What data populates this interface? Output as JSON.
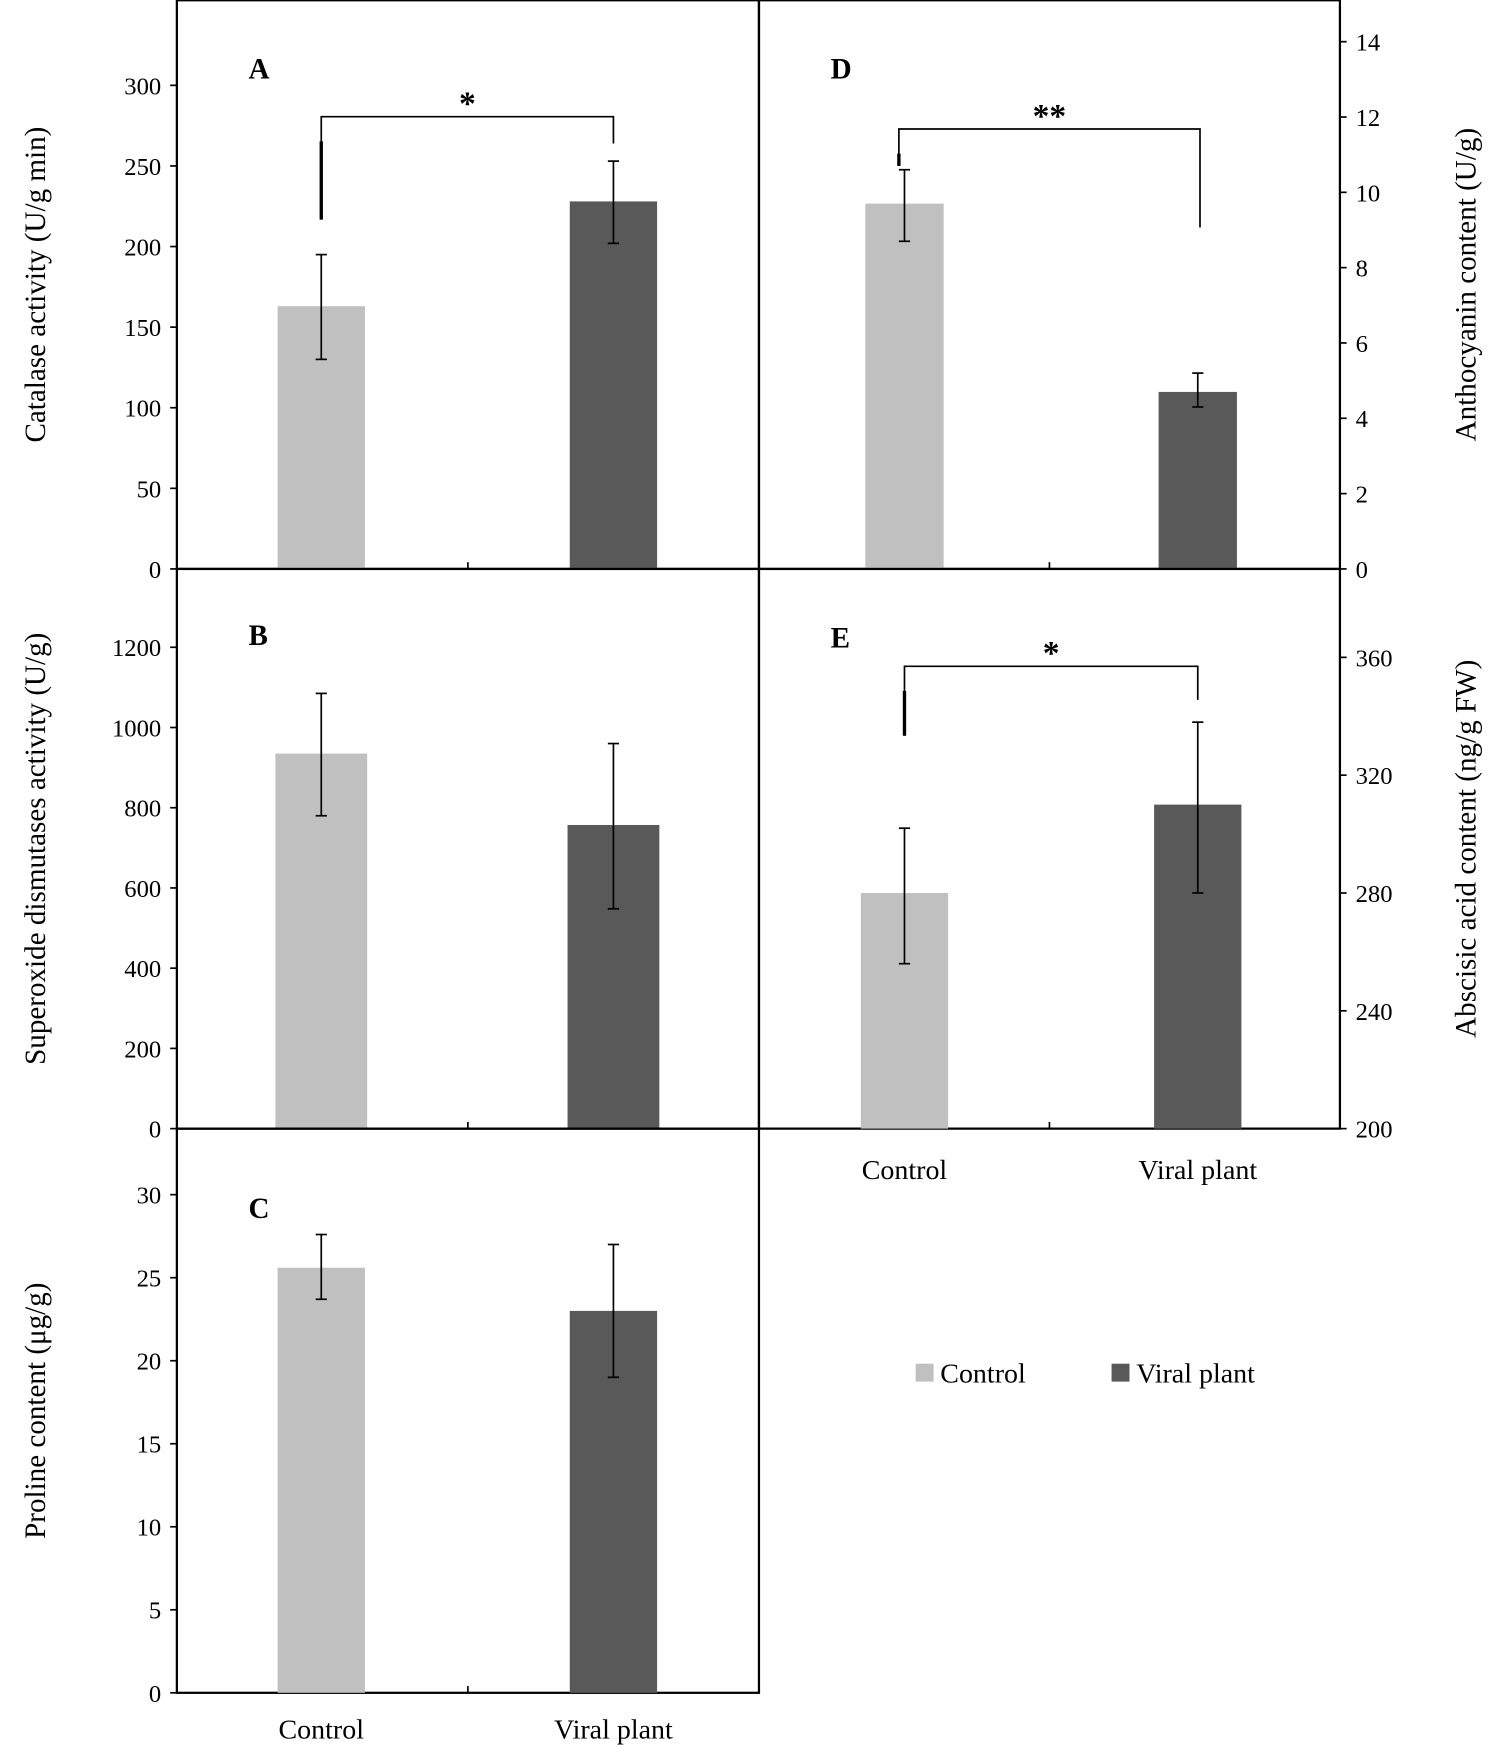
{
  "chart_data": [
    {
      "panel": "A",
      "type": "bar",
      "categories": [
        "Control",
        "Viral plant"
      ],
      "values": [
        163,
        228
      ],
      "errors_low": [
        130,
        202
      ],
      "errors_high": [
        195,
        253
      ],
      "ylabel": "Catalase activity (U/g min)",
      "ylim": [
        0,
        300
      ],
      "yticks": [
        "0",
        "50",
        "100",
        "150",
        "200",
        "250",
        "300"
      ],
      "axis": "left",
      "significance": "*"
    },
    {
      "panel": "B",
      "type": "bar",
      "categories": [
        "Control",
        "Viral plant"
      ],
      "values": [
        935,
        757
      ],
      "errors_low": [
        780,
        548
      ],
      "errors_high": [
        1085,
        960
      ],
      "ylabel": "Superoxide dismutases activity (U/g)",
      "ylim": [
        0,
        1200
      ],
      "yticks": [
        "0",
        "200",
        "400",
        "600",
        "800",
        "1000",
        "1200"
      ],
      "axis": "left",
      "significance": ""
    },
    {
      "panel": "C",
      "type": "bar",
      "categories": [
        "Control",
        "Viral plant"
      ],
      "values": [
        25.6,
        23.0
      ],
      "errors_low": [
        23.7,
        19.0
      ],
      "errors_high": [
        27.6,
        27.0
      ],
      "ylabel": "Proline content (μg/g)",
      "ylim": [
        0,
        30
      ],
      "yticks": [
        "0",
        "5",
        "10",
        "15",
        "20",
        "25",
        "30"
      ],
      "axis": "left",
      "significance": ""
    },
    {
      "panel": "D",
      "type": "bar",
      "categories": [
        "Control",
        "Viral plant"
      ],
      "values": [
        9.7,
        4.7
      ],
      "errors_low": [
        8.7,
        4.3
      ],
      "errors_high": [
        10.6,
        5.2
      ],
      "ylabel": "Anthocyanin content (U/g)",
      "ylim": [
        0,
        14
      ],
      "yticks": [
        "0",
        "2",
        "4",
        "6",
        "8",
        "10",
        "12",
        "14"
      ],
      "axis": "right",
      "significance": "**"
    },
    {
      "panel": "E",
      "type": "bar",
      "categories": [
        "Control",
        "Viral plant"
      ],
      "values": [
        280,
        310
      ],
      "errors_low": [
        256,
        280
      ],
      "errors_high": [
        302,
        338
      ],
      "ylabel": "Abscisic acid content (ng/g FW)",
      "ylim": [
        200,
        360
      ],
      "yticks": [
        "200",
        "240",
        "280",
        "320",
        "360"
      ],
      "axis": "right",
      "significance": "*"
    }
  ],
  "legend": {
    "items": [
      {
        "label": "Control",
        "color": "#c0c0c0"
      },
      {
        "label": "Viral plant",
        "color": "#595959"
      }
    ],
    "placement": "bottom-right"
  },
  "xlabels": [
    "Control",
    "Viral plant"
  ]
}
